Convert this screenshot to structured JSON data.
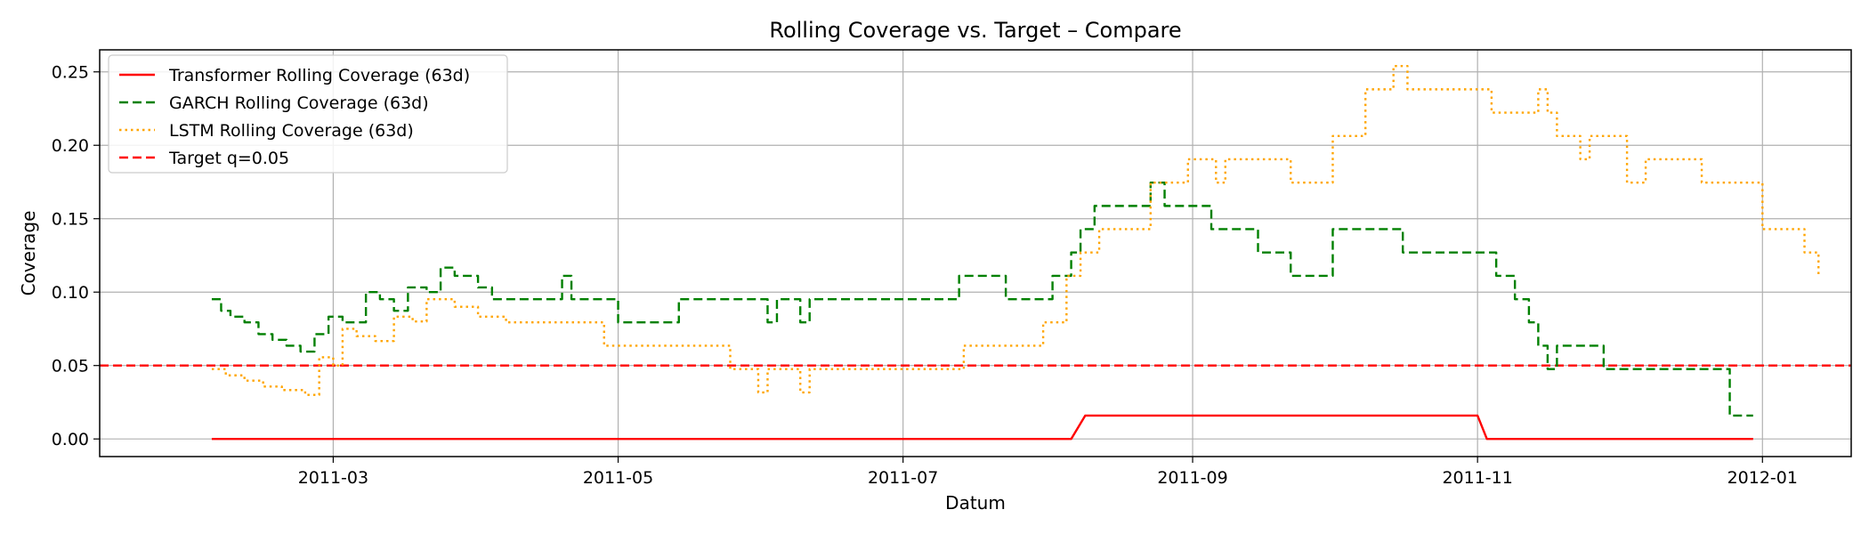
{
  "chart_data": {
    "type": "line",
    "title": "Rolling Coverage vs. Target – Compare",
    "xlabel": "Datum",
    "ylabel": "Coverage",
    "x_axis": {
      "type": "date",
      "range": [
        "2011-01-10",
        "2012-01-20"
      ],
      "ticks": [
        "2011-03-01",
        "2011-05-01",
        "2011-07-01",
        "2011-09-01",
        "2011-11-01",
        "2012-01-01"
      ],
      "tick_labels": [
        "2011-03",
        "2011-05",
        "2011-07",
        "2011-09",
        "2011-11",
        "2012-01"
      ]
    },
    "y_axis": {
      "range": [
        -0.012,
        0.265
      ],
      "ticks": [
        0.0,
        0.05,
        0.1,
        0.15,
        0.2,
        0.25
      ],
      "tick_labels": [
        "0.00",
        "0.05",
        "0.10",
        "0.15",
        "0.20",
        "0.25"
      ]
    },
    "grid": true,
    "legend_position": "top-left",
    "series": [
      {
        "name": "Transformer Rolling Coverage (63d)",
        "color": "#ff0000",
        "style": "solid",
        "step": false,
        "points": [
          [
            "2011-02-03",
            0.0
          ],
          [
            "2011-08-06",
            0.0
          ],
          [
            "2011-08-09",
            0.0159
          ],
          [
            "2011-11-01",
            0.0159
          ],
          [
            "2011-11-03",
            0.0
          ],
          [
            "2011-12-30",
            0.0
          ]
        ]
      },
      {
        "name": "GARCH Rolling Coverage (63d)",
        "color": "#008000",
        "style": "dashed",
        "step": true,
        "points": [
          [
            "2011-02-03",
            0.0952
          ],
          [
            "2011-02-05",
            0.0873
          ],
          [
            "2011-02-07",
            0.0833
          ],
          [
            "2011-02-10",
            0.0794
          ],
          [
            "2011-02-13",
            0.0714
          ],
          [
            "2011-02-16",
            0.0675
          ],
          [
            "2011-02-19",
            0.0635
          ],
          [
            "2011-02-22",
            0.0595
          ],
          [
            "2011-02-25",
            0.0714
          ],
          [
            "2011-02-28",
            0.0833
          ],
          [
            "2011-03-03",
            0.0794
          ],
          [
            "2011-03-08",
            0.1
          ],
          [
            "2011-03-11",
            0.0952
          ],
          [
            "2011-03-14",
            0.0873
          ],
          [
            "2011-03-17",
            0.1032
          ],
          [
            "2011-03-21",
            0.1
          ],
          [
            "2011-03-24",
            0.1167
          ],
          [
            "2011-03-27",
            0.1111
          ],
          [
            "2011-04-01",
            0.1032
          ],
          [
            "2011-04-04",
            0.0952
          ],
          [
            "2011-04-19",
            0.1111
          ],
          [
            "2011-04-21",
            0.0952
          ],
          [
            "2011-05-01",
            0.0794
          ],
          [
            "2011-05-14",
            0.0952
          ],
          [
            "2011-05-29",
            0.0952
          ],
          [
            "2011-06-02",
            0.0794
          ],
          [
            "2011-06-04",
            0.0952
          ],
          [
            "2011-06-09",
            0.0794
          ],
          [
            "2011-06-11",
            0.0952
          ],
          [
            "2011-07-13",
            0.1111
          ],
          [
            "2011-07-23",
            0.0952
          ],
          [
            "2011-08-02",
            0.1111
          ],
          [
            "2011-08-06",
            0.127
          ],
          [
            "2011-08-08",
            0.1429
          ],
          [
            "2011-08-11",
            0.1587
          ],
          [
            "2011-08-23",
            0.1746
          ],
          [
            "2011-08-26",
            0.1587
          ],
          [
            "2011-09-05",
            0.1429
          ],
          [
            "2011-09-15",
            0.127
          ],
          [
            "2011-09-22",
            0.1111
          ],
          [
            "2011-10-01",
            0.1429
          ],
          [
            "2011-10-16",
            0.127
          ],
          [
            "2011-11-05",
            0.1111
          ],
          [
            "2011-11-09",
            0.0952
          ],
          [
            "2011-11-12",
            0.0794
          ],
          [
            "2011-11-14",
            0.0635
          ],
          [
            "2011-11-16",
            0.0476
          ],
          [
            "2011-11-18",
            0.0635
          ],
          [
            "2011-11-28",
            0.0476
          ],
          [
            "2011-12-25",
            0.0159
          ],
          [
            "2011-12-30",
            0.0159
          ]
        ]
      },
      {
        "name": "LSTM Rolling Coverage (63d)",
        "color": "#ffa500",
        "style": "dotted",
        "step": true,
        "points": [
          [
            "2011-02-03",
            0.0476
          ],
          [
            "2011-02-06",
            0.0433
          ],
          [
            "2011-02-10",
            0.0397
          ],
          [
            "2011-02-14",
            0.0357
          ],
          [
            "2011-02-18",
            0.0333
          ],
          [
            "2011-02-23",
            0.03
          ],
          [
            "2011-02-26",
            0.0556
          ],
          [
            "2011-03-01",
            0.05
          ],
          [
            "2011-03-03",
            0.075
          ],
          [
            "2011-03-06",
            0.07
          ],
          [
            "2011-03-10",
            0.0667
          ],
          [
            "2011-03-14",
            0.0833
          ],
          [
            "2011-03-18",
            0.08
          ],
          [
            "2011-03-21",
            0.0952
          ],
          [
            "2011-03-27",
            0.09
          ],
          [
            "2011-04-01",
            0.0833
          ],
          [
            "2011-04-07",
            0.0794
          ],
          [
            "2011-04-28",
            0.0635
          ],
          [
            "2011-05-25",
            0.0476
          ],
          [
            "2011-05-31",
            0.0317
          ],
          [
            "2011-06-02",
            0.0476
          ],
          [
            "2011-06-09",
            0.0317
          ],
          [
            "2011-06-11",
            0.0476
          ],
          [
            "2011-07-14",
            0.0635
          ],
          [
            "2011-07-31",
            0.0794
          ],
          [
            "2011-08-05",
            0.1111
          ],
          [
            "2011-08-08",
            0.127
          ],
          [
            "2011-08-12",
            0.1429
          ],
          [
            "2011-08-23",
            0.1746
          ],
          [
            "2011-08-31",
            0.1905
          ],
          [
            "2011-09-06",
            0.1746
          ],
          [
            "2011-09-08",
            0.1905
          ],
          [
            "2011-09-22",
            0.1746
          ],
          [
            "2011-10-01",
            0.2063
          ],
          [
            "2011-10-08",
            0.2381
          ],
          [
            "2011-10-14",
            0.254
          ],
          [
            "2011-10-17",
            0.2381
          ],
          [
            "2011-11-04",
            0.2222
          ],
          [
            "2011-11-14",
            0.2381
          ],
          [
            "2011-11-16",
            0.2222
          ],
          [
            "2011-11-18",
            0.2063
          ],
          [
            "2011-11-23",
            0.1905
          ],
          [
            "2011-11-25",
            0.2063
          ],
          [
            "2011-12-03",
            0.1746
          ],
          [
            "2011-12-07",
            0.1905
          ],
          [
            "2011-12-19",
            0.1746
          ],
          [
            "2012-01-01",
            0.1429
          ],
          [
            "2012-01-10",
            0.127
          ],
          [
            "2012-01-13",
            0.1111
          ]
        ]
      },
      {
        "name": "Target q=0.05",
        "color": "#ff0000",
        "style": "dashed",
        "hline": 0.05
      }
    ]
  }
}
